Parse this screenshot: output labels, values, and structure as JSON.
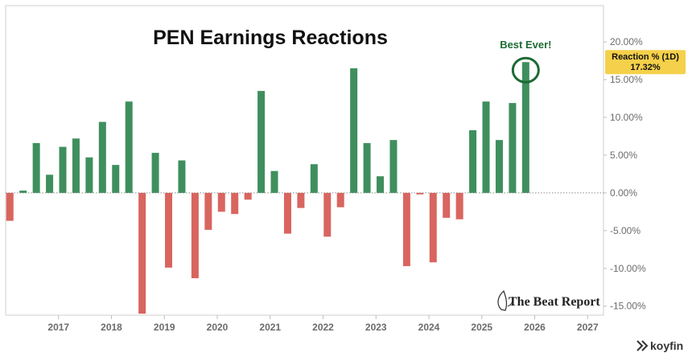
{
  "chart_data": {
    "type": "bar",
    "title": "PEN Earnings Reactions",
    "series": [
      {
        "name": "Reaction % (1D)",
        "points": [
          {
            "x": 2016.08,
            "y": -3.7
          },
          {
            "x": 2016.33,
            "y": 0.3
          },
          {
            "x": 2016.58,
            "y": 6.6
          },
          {
            "x": 2016.83,
            "y": 2.4
          },
          {
            "x": 2017.08,
            "y": 6.1
          },
          {
            "x": 2017.33,
            "y": 7.2
          },
          {
            "x": 2017.58,
            "y": 4.7
          },
          {
            "x": 2017.83,
            "y": 9.4
          },
          {
            "x": 2018.08,
            "y": 3.7
          },
          {
            "x": 2018.33,
            "y": 12.1
          },
          {
            "x": 2018.58,
            "y": -16.0
          },
          {
            "x": 2018.83,
            "y": 5.3
          },
          {
            "x": 2019.08,
            "y": -9.9
          },
          {
            "x": 2019.33,
            "y": 4.3
          },
          {
            "x": 2019.58,
            "y": -11.3
          },
          {
            "x": 2019.83,
            "y": -4.9
          },
          {
            "x": 2020.08,
            "y": -2.5
          },
          {
            "x": 2020.33,
            "y": -2.8
          },
          {
            "x": 2020.58,
            "y": -0.9
          },
          {
            "x": 2020.83,
            "y": 13.5
          },
          {
            "x": 2021.08,
            "y": 2.9
          },
          {
            "x": 2021.33,
            "y": -5.4
          },
          {
            "x": 2021.58,
            "y": -2.0
          },
          {
            "x": 2021.83,
            "y": 3.8
          },
          {
            "x": 2022.08,
            "y": -5.8
          },
          {
            "x": 2022.33,
            "y": -1.9
          },
          {
            "x": 2022.58,
            "y": 16.5
          },
          {
            "x": 2022.83,
            "y": 6.6
          },
          {
            "x": 2023.08,
            "y": 2.2
          },
          {
            "x": 2023.33,
            "y": 7.0
          },
          {
            "x": 2023.58,
            "y": -9.7
          },
          {
            "x": 2023.83,
            "y": -0.2
          },
          {
            "x": 2024.08,
            "y": -9.2
          },
          {
            "x": 2024.33,
            "y": -3.3
          },
          {
            "x": 2024.58,
            "y": -3.5
          },
          {
            "x": 2024.83,
            "y": 8.3
          },
          {
            "x": 2025.08,
            "y": 12.1
          },
          {
            "x": 2025.33,
            "y": 7.0
          },
          {
            "x": 2025.58,
            "y": 11.9
          },
          {
            "x": 2025.83,
            "y": 17.32
          }
        ]
      }
    ],
    "x_ticks": [
      "2017",
      "2018",
      "2019",
      "2020",
      "2021",
      "2022",
      "2023",
      "2024",
      "2025",
      "2026",
      "2027"
    ],
    "x_tick_values": [
      2017,
      2018,
      2019,
      2020,
      2021,
      2022,
      2023,
      2024,
      2025,
      2026,
      2027
    ],
    "xlim": [
      2016.0,
      2027.3
    ],
    "y_ticks": [
      "20.00%",
      "15.00%",
      "10.00%",
      "5.00%",
      "0.00%",
      "-5.00%",
      "-10.00%",
      "-15.00%"
    ],
    "y_tick_values": [
      20,
      15,
      10,
      5,
      0,
      -5,
      -10,
      -15
    ],
    "ylim": [
      -16.2,
      24.8
    ],
    "y_axis_side": "right",
    "grid": false,
    "zero_line": "dotted",
    "colors": {
      "positive": "#3f8f5e",
      "negative": "#d9655f",
      "annotation": "#1d6b34",
      "badge": "#f5d04a"
    },
    "annotation": {
      "text": "Best Ever!",
      "x": 2025.83,
      "y": 17.32
    },
    "last_value_badge": {
      "label": "Reaction % (1D)",
      "value": "17.32%"
    }
  },
  "branding": {
    "watermark": "The Beat Report",
    "source": "koyfin"
  }
}
